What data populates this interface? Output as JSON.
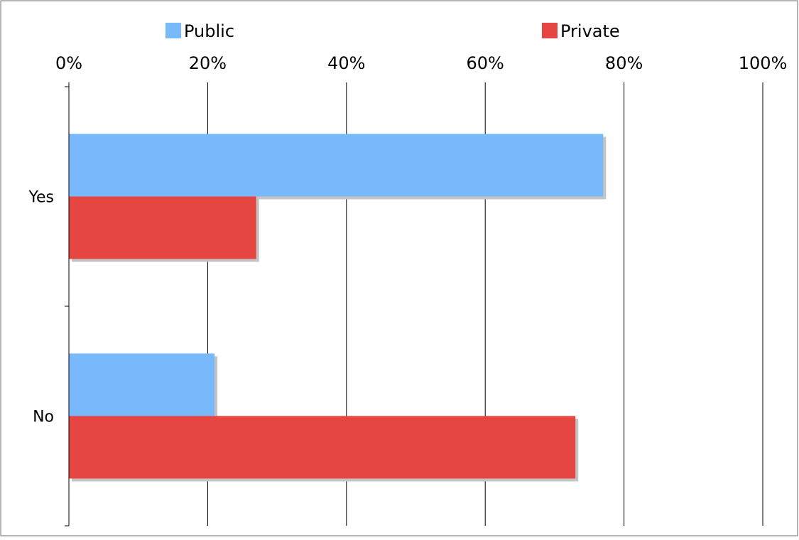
{
  "chart_data": {
    "type": "bar",
    "orientation": "horizontal",
    "title": "",
    "xlabel": "",
    "ylabel": "",
    "categories": [
      "Yes",
      "No"
    ],
    "series": [
      {
        "name": "Public",
        "color": "#77b9fb",
        "values": [
          77,
          21
        ]
      },
      {
        "name": "Private",
        "color": "#e64641",
        "values": [
          27,
          73
        ]
      }
    ],
    "xlim": [
      0,
      100
    ],
    "x_ticks": [
      0,
      20,
      40,
      60,
      80,
      100
    ],
    "x_tick_labels": [
      "0%",
      "20%",
      "40%",
      "60%",
      "80%",
      "100%"
    ],
    "x_axis_position": "top",
    "legend_position": "top",
    "grid": true,
    "bar_shadow": true
  }
}
